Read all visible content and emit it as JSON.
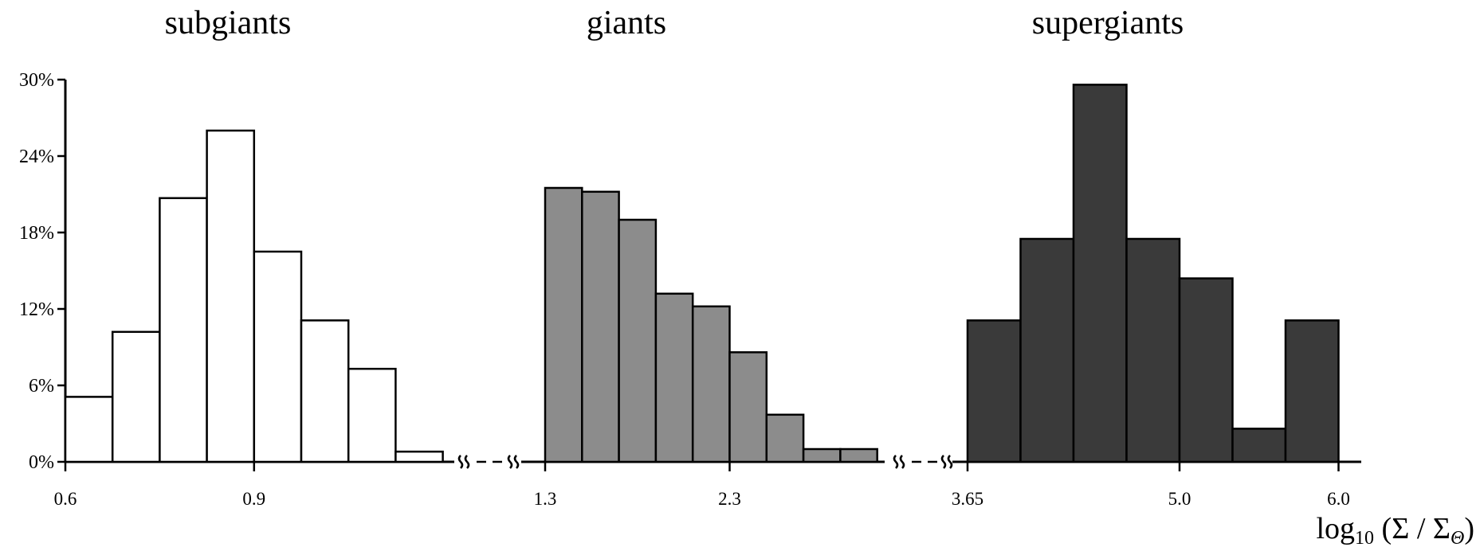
{
  "chart_data": {
    "type": "bar",
    "y_axis": {
      "ticks": [
        "0%",
        "6%",
        "12%",
        "18%",
        "24%",
        "30%"
      ],
      "ylim": [
        0,
        30
      ]
    },
    "xlabel": {
      "main": "log",
      "sub": "10",
      "rest": " (Σ / Σ",
      "symbol_sub": "Θ",
      "close": ")"
    },
    "panels": [
      {
        "title": "subgiants",
        "fill_color": "#ffffff",
        "x_ticks": [
          {
            "label": "0.6",
            "bin_edge": 0
          },
          {
            "label": "0.9",
            "bin_edge": 4
          }
        ],
        "values": [
          5.1,
          10.2,
          20.7,
          26.0,
          16.5,
          11.1,
          7.3,
          0.8
        ]
      },
      {
        "title": "giants",
        "fill_color": "#8c8c8c",
        "x_ticks": [
          {
            "label": "1.3",
            "bin_edge": 0
          },
          {
            "label": "2.3",
            "bin_edge": 5
          }
        ],
        "values": [
          21.5,
          21.2,
          19.0,
          13.2,
          12.2,
          8.6,
          3.7,
          1.0,
          1.0
        ]
      },
      {
        "title": "supergiants",
        "fill_color": "#3a3a3a",
        "x_ticks": [
          {
            "label": "3.65",
            "bin_edge": 0
          },
          {
            "label": "5.0",
            "bin_edge": 4
          },
          {
            "label": "6.0",
            "bin_edge": 7
          }
        ],
        "values": [
          11.1,
          17.5,
          29.6,
          17.5,
          14.4,
          2.6,
          11.1
        ]
      }
    ]
  }
}
